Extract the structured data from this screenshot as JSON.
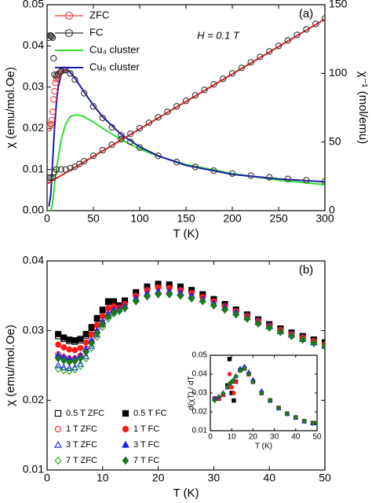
{
  "chart_data": [
    {
      "type": "line",
      "label": "(a)",
      "annotation": "H = 0.1 T",
      "xlabel": "T (K)",
      "ylabel": "χ (emu/mol.Oe)",
      "y2label": "χ⁻¹ (mol/emu)",
      "xlim": [
        0,
        300
      ],
      "xticks": [
        0,
        50,
        100,
        150,
        200,
        250,
        300
      ],
      "ylim": [
        0,
        0.05
      ],
      "yticks": [
        {
          "value": 0,
          "label": "0.00"
        },
        0.01,
        0.02,
        0.03,
        0.04,
        0.05
      ],
      "y2lim": [
        0,
        150
      ],
      "y2ticks": [
        0,
        50,
        100,
        150
      ],
      "legend": "upper left",
      "series": [
        {
          "name": "ZFC",
          "color": "#f03a3a",
          "marker": "circle",
          "filled": false,
          "x": [
            2,
            3,
            4,
            5,
            6,
            7,
            8,
            9,
            10,
            11,
            12,
            14,
            16,
            18,
            20
          ],
          "values": [
            0.02,
            0.0205,
            0.021,
            0.022,
            0.024,
            0.027,
            0.029,
            0.031,
            0.032,
            0.0325,
            0.033,
            0.0335,
            0.034,
            0.0342,
            0.0341
          ]
        },
        {
          "name": "FC",
          "color": "#333333",
          "marker": "circle",
          "filled": false,
          "x": [
            2,
            3,
            4,
            5,
            6,
            7,
            8,
            10,
            12,
            15,
            18,
            20,
            25,
            30,
            40,
            50,
            60,
            70,
            80,
            90,
            100,
            120,
            140,
            160,
            180,
            200,
            220,
            240,
            260,
            280,
            300
          ],
          "values": [
            0.042,
            0.0425,
            0.0425,
            0.0423,
            0.042,
            0.037,
            0.033,
            0.0328,
            0.0332,
            0.0338,
            0.0342,
            0.0341,
            0.0333,
            0.0318,
            0.0285,
            0.0253,
            0.0225,
            0.0202,
            0.0183,
            0.0167,
            0.0153,
            0.0133,
            0.0118,
            0.0106,
            0.0097,
            0.009,
            0.0085,
            0.0081,
            0.0077,
            0.0074,
            0.0071
          ]
        },
        {
          "name": "Cu₄ cluster",
          "color": "#2ee02e",
          "x": [
            4,
            6,
            8,
            10,
            15,
            20,
            25,
            30,
            35,
            40,
            50,
            60,
            80,
            100,
            120,
            150,
            200,
            250,
            300
          ],
          "values": [
            0,
            0.002,
            0.006,
            0.01,
            0.017,
            0.021,
            0.0228,
            0.0232,
            0.0232,
            0.0228,
            0.0215,
            0.02,
            0.0172,
            0.015,
            0.0132,
            0.0112,
            0.009,
            0.0074,
            0.0063
          ]
        },
        {
          "name": "Cu₅ cluster",
          "color": "#1c1ca8",
          "x": [
            2,
            4,
            6,
            8,
            10,
            12,
            15,
            18,
            20,
            25,
            30,
            40,
            50,
            60,
            80,
            100,
            120,
            150,
            200,
            250,
            300
          ],
          "values": [
            0.001,
            0.004,
            0.012,
            0.02,
            0.026,
            0.03,
            0.0328,
            0.034,
            0.0342,
            0.0336,
            0.0322,
            0.0288,
            0.0256,
            0.0228,
            0.0185,
            0.0155,
            0.0133,
            0.011,
            0.0088,
            0.0077,
            0.007
          ]
        },
        {
          "color": "#333333",
          "marker": "circle",
          "filled": false,
          "axis": "y2",
          "x": [
            2,
            4,
            6,
            8,
            10,
            15,
            20,
            25,
            30,
            35,
            40,
            50,
            60,
            70,
            80,
            90,
            100,
            110,
            120,
            130,
            140,
            150,
            160,
            170,
            180,
            190,
            200,
            210,
            220,
            230,
            240,
            250,
            260,
            270,
            280,
            290,
            300
          ],
          "values": [
            24,
            24,
            24,
            28,
            30,
            30,
            30,
            31,
            32,
            34,
            36,
            40,
            44,
            48,
            52,
            56,
            60,
            64,
            68,
            72,
            76,
            80,
            84,
            88,
            92,
            96,
            100,
            104,
            108,
            112,
            116,
            120,
            124,
            128,
            132,
            136,
            140
          ]
        },
        {
          "color": "#e02020",
          "axis": "y2",
          "x": [
            0,
            300
          ],
          "values": [
            19.5,
            139.5
          ]
        }
      ]
    },
    {
      "type": "scatter",
      "label": "(b)",
      "xlabel": "T (K)",
      "ylabel": "χ (emu/mol.Oe)",
      "xlim": [
        0,
        50
      ],
      "xticks": [
        0,
        10,
        20,
        30,
        40,
        50
      ],
      "ylim": [
        0.01,
        0.04
      ],
      "yticks": [
        0.01,
        0.02,
        0.03,
        0.04
      ],
      "legend": "lower left",
      "x": [
        2,
        3,
        4,
        5,
        6,
        7,
        8,
        9,
        10,
        11,
        12,
        13,
        14,
        16,
        18,
        20,
        22,
        24,
        26,
        28,
        30,
        32,
        34,
        36,
        38,
        40,
        42,
        44,
        46,
        48,
        50
      ],
      "series": [
        {
          "name": "0.5 T ZFC",
          "color": "#000000",
          "marker": "square",
          "filled": false,
          "values": [
            0.0292,
            0.0288,
            0.0285,
            0.0284,
            0.0286,
            0.0293,
            0.0304,
            0.0317,
            0.0329,
            0.0341,
            0.0342,
            0.0336,
            0.0343,
            0.0355,
            0.0363,
            0.0367,
            0.0366,
            0.0363,
            0.0358,
            0.0352,
            0.0345,
            0.0338,
            0.033,
            0.0323,
            0.0316,
            0.0309,
            0.0303,
            0.0297,
            0.0292,
            0.0287,
            0.0283
          ]
        },
        {
          "name": "0.5 T FC",
          "color": "#000000",
          "marker": "square",
          "filled": true,
          "values": [
            0.0295,
            0.029,
            0.0287,
            0.0286,
            0.0288,
            0.0295,
            0.0305,
            0.0318,
            0.033,
            0.0342,
            0.0342,
            0.0336,
            0.0343,
            0.0355,
            0.0363,
            0.0367,
            0.0366,
            0.0363,
            0.0358,
            0.0352,
            0.0345,
            0.0338,
            0.033,
            0.0323,
            0.0316,
            0.0309,
            0.0303,
            0.0297,
            0.0292,
            0.0287,
            0.0283
          ]
        },
        {
          "name": "1 T ZFC",
          "color": "#ff1a1a",
          "marker": "circle",
          "filled": false,
          "values": [
            0.0266,
            0.0262,
            0.026,
            0.026,
            0.0264,
            0.0274,
            0.0288,
            0.0303,
            0.0317,
            0.0329,
            0.0333,
            0.0333,
            0.0338,
            0.035,
            0.0358,
            0.0362,
            0.0361,
            0.0358,
            0.0354,
            0.0348,
            0.0342,
            0.0335,
            0.0328,
            0.0321,
            0.0314,
            0.0307,
            0.0301,
            0.0295,
            0.029,
            0.0285,
            0.028
          ]
        },
        {
          "name": "1 T FC",
          "color": "#ff1a1a",
          "marker": "circle",
          "filled": true,
          "values": [
            0.028,
            0.0276,
            0.0273,
            0.0272,
            0.0275,
            0.0283,
            0.0295,
            0.0308,
            0.0321,
            0.0332,
            0.0335,
            0.0333,
            0.0338,
            0.035,
            0.0358,
            0.0362,
            0.0361,
            0.0358,
            0.0354,
            0.0348,
            0.0342,
            0.0335,
            0.0328,
            0.0321,
            0.0314,
            0.0307,
            0.0301,
            0.0295,
            0.029,
            0.0285,
            0.028
          ]
        },
        {
          "name": "3 T ZFC",
          "color": "#1a1aff",
          "marker": "triangle",
          "filled": false,
          "values": [
            0.025,
            0.0247,
            0.0246,
            0.0247,
            0.0252,
            0.0263,
            0.0278,
            0.0294,
            0.0309,
            0.0321,
            0.0328,
            0.0331,
            0.0335,
            0.0346,
            0.0353,
            0.0356,
            0.0356,
            0.0354,
            0.035,
            0.0345,
            0.0339,
            0.0333,
            0.0326,
            0.0319,
            0.0312,
            0.0306,
            0.0299,
            0.0294,
            0.0288,
            0.0283,
            0.0278
          ]
        },
        {
          "name": "3 T FC",
          "color": "#1a1aff",
          "marker": "triangle",
          "filled": true,
          "values": [
            0.0265,
            0.0262,
            0.026,
            0.026,
            0.0264,
            0.0273,
            0.0286,
            0.03,
            0.0313,
            0.0324,
            0.033,
            0.0331,
            0.0335,
            0.0346,
            0.0353,
            0.0356,
            0.0356,
            0.0354,
            0.035,
            0.0345,
            0.0339,
            0.0333,
            0.0326,
            0.0319,
            0.0312,
            0.0306,
            0.0299,
            0.0294,
            0.0288,
            0.0283,
            0.0278
          ]
        },
        {
          "name": "7 T ZFC",
          "color": "#1fa81f",
          "marker": "diamond",
          "filled": false,
          "values": [
            0.0245,
            0.0243,
            0.0242,
            0.0244,
            0.0249,
            0.026,
            0.0275,
            0.0291,
            0.0305,
            0.0317,
            0.0324,
            0.0328,
            0.0332,
            0.0342,
            0.0349,
            0.0352,
            0.0352,
            0.035,
            0.0346,
            0.0342,
            0.0336,
            0.033,
            0.0323,
            0.0317,
            0.031,
            0.0304,
            0.0298,
            0.0292,
            0.0287,
            0.0282,
            0.0277
          ]
        },
        {
          "name": "7 T FC",
          "color": "#1a7a1a",
          "marker": "diamond",
          "filled": true,
          "values": [
            0.026,
            0.0257,
            0.0255,
            0.0256,
            0.026,
            0.0269,
            0.0282,
            0.0296,
            0.0309,
            0.032,
            0.0326,
            0.0328,
            0.0332,
            0.0342,
            0.0349,
            0.0352,
            0.0352,
            0.035,
            0.0346,
            0.0342,
            0.0336,
            0.033,
            0.0323,
            0.0317,
            0.031,
            0.0304,
            0.0298,
            0.0292,
            0.0287,
            0.0282,
            0.0277
          ]
        }
      ]
    },
    {
      "type": "scatter",
      "xlabel": "T (K)",
      "ylabel": "d(χT) / dT",
      "xlim": [
        0,
        50
      ],
      "xticks": [
        0,
        10,
        20,
        30,
        40,
        50
      ],
      "ylim": [
        0.01,
        0.05
      ],
      "yticks": [
        0.01,
        0.02,
        0.03,
        0.04,
        0.05
      ],
      "x": [
        2,
        4,
        6,
        8,
        9,
        10,
        11,
        12,
        14,
        16,
        18,
        20,
        24,
        28,
        32,
        36,
        40,
        44,
        48,
        50
      ],
      "series": [
        {
          "color": "#000000",
          "marker": "square",
          "filled": true,
          "values": [
            0.027,
            0.027,
            0.029,
            0.034,
            0.048,
            0.03,
            0.026,
            0.036,
            0.042,
            0.043,
            0.04,
            0.036,
            0.03,
            0.026,
            0.022,
            0.019,
            0.017,
            0.015,
            0.014,
            0.014
          ]
        },
        {
          "color": "#ff1a1a",
          "marker": "circle",
          "filled": true,
          "values": [
            0.027,
            0.027,
            0.029,
            0.033,
            0.04,
            0.033,
            0.03,
            0.036,
            0.042,
            0.043,
            0.04,
            0.036,
            0.03,
            0.026,
            0.022,
            0.019,
            0.017,
            0.015,
            0.014,
            0.014
          ]
        },
        {
          "color": "#1a1aff",
          "marker": "triangle",
          "filled": true,
          "values": [
            0.027,
            0.028,
            0.03,
            0.033,
            0.035,
            0.036,
            0.037,
            0.039,
            0.043,
            0.044,
            0.041,
            0.037,
            0.031,
            0.026,
            0.022,
            0.019,
            0.017,
            0.015,
            0.014,
            0.014
          ]
        },
        {
          "color": "#1a7a1a",
          "marker": "diamond",
          "filled": true,
          "values": [
            0.026,
            0.028,
            0.03,
            0.033,
            0.035,
            0.036,
            0.037,
            0.039,
            0.042,
            0.043,
            0.04,
            0.036,
            0.03,
            0.026,
            0.022,
            0.019,
            0.017,
            0.015,
            0.014,
            0.014
          ]
        }
      ]
    }
  ]
}
